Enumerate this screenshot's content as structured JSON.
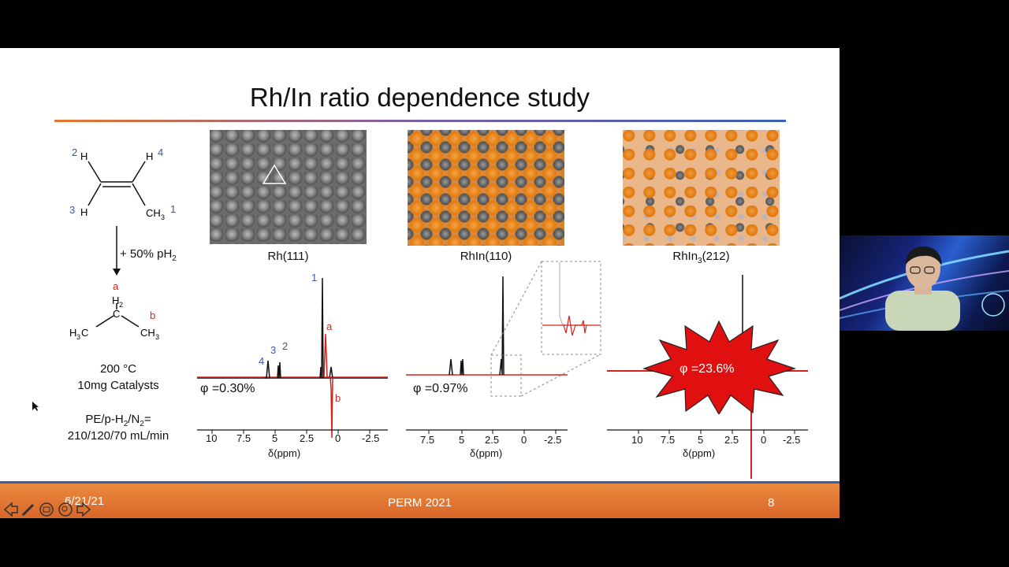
{
  "slide": {
    "title": "Rh/In ratio dependence study",
    "footer_date": "6/21/21",
    "footer_center": "PERM 2021",
    "footer_page": "8"
  },
  "reaction": {
    "reactant_labels": [
      "2",
      "4",
      "3",
      "1"
    ],
    "reagent": "+ 50% pH",
    "reagent_sub": "2",
    "product_labels": [
      "a",
      "b"
    ],
    "condition_temp": "200 °C",
    "condition_catalyst": "10mg Catalysts",
    "flow_label": "PE/p-H",
    "flow_mid": "/N",
    "flow_end": "=",
    "flow_values": "210/120/70 mL/min"
  },
  "panels": [
    {
      "surface": "Rh(111)",
      "phi": "φ =0.30%"
    },
    {
      "surface": "RhIn(110)",
      "phi": "φ =0.97%"
    },
    {
      "surface_pre": "RhIn",
      "surface_sub": "3",
      "surface_post": "(212)",
      "phi": "φ =23.6%"
    }
  ],
  "axis": {
    "title": "δ(ppm)"
  },
  "ticks": {
    "p1": [
      "10",
      "7.5",
      "5",
      "2.5",
      "0",
      "-2.5"
    ],
    "p2": [
      "7.5",
      "5",
      "2.5",
      "0",
      "-2.5"
    ],
    "p3": [
      "10",
      "7.5",
      "5",
      "2.5",
      "0",
      "-2.5"
    ]
  },
  "peak_labels": {
    "n1": "1",
    "n2": "2",
    "n3": "3",
    "n4": "4",
    "a": "a",
    "b": "b"
  },
  "colors": {
    "accent_orange": "#e8752a",
    "accent_blue": "#3f5ea8",
    "spectrum_red": "#d4231a",
    "burst_red": "#e01010"
  }
}
